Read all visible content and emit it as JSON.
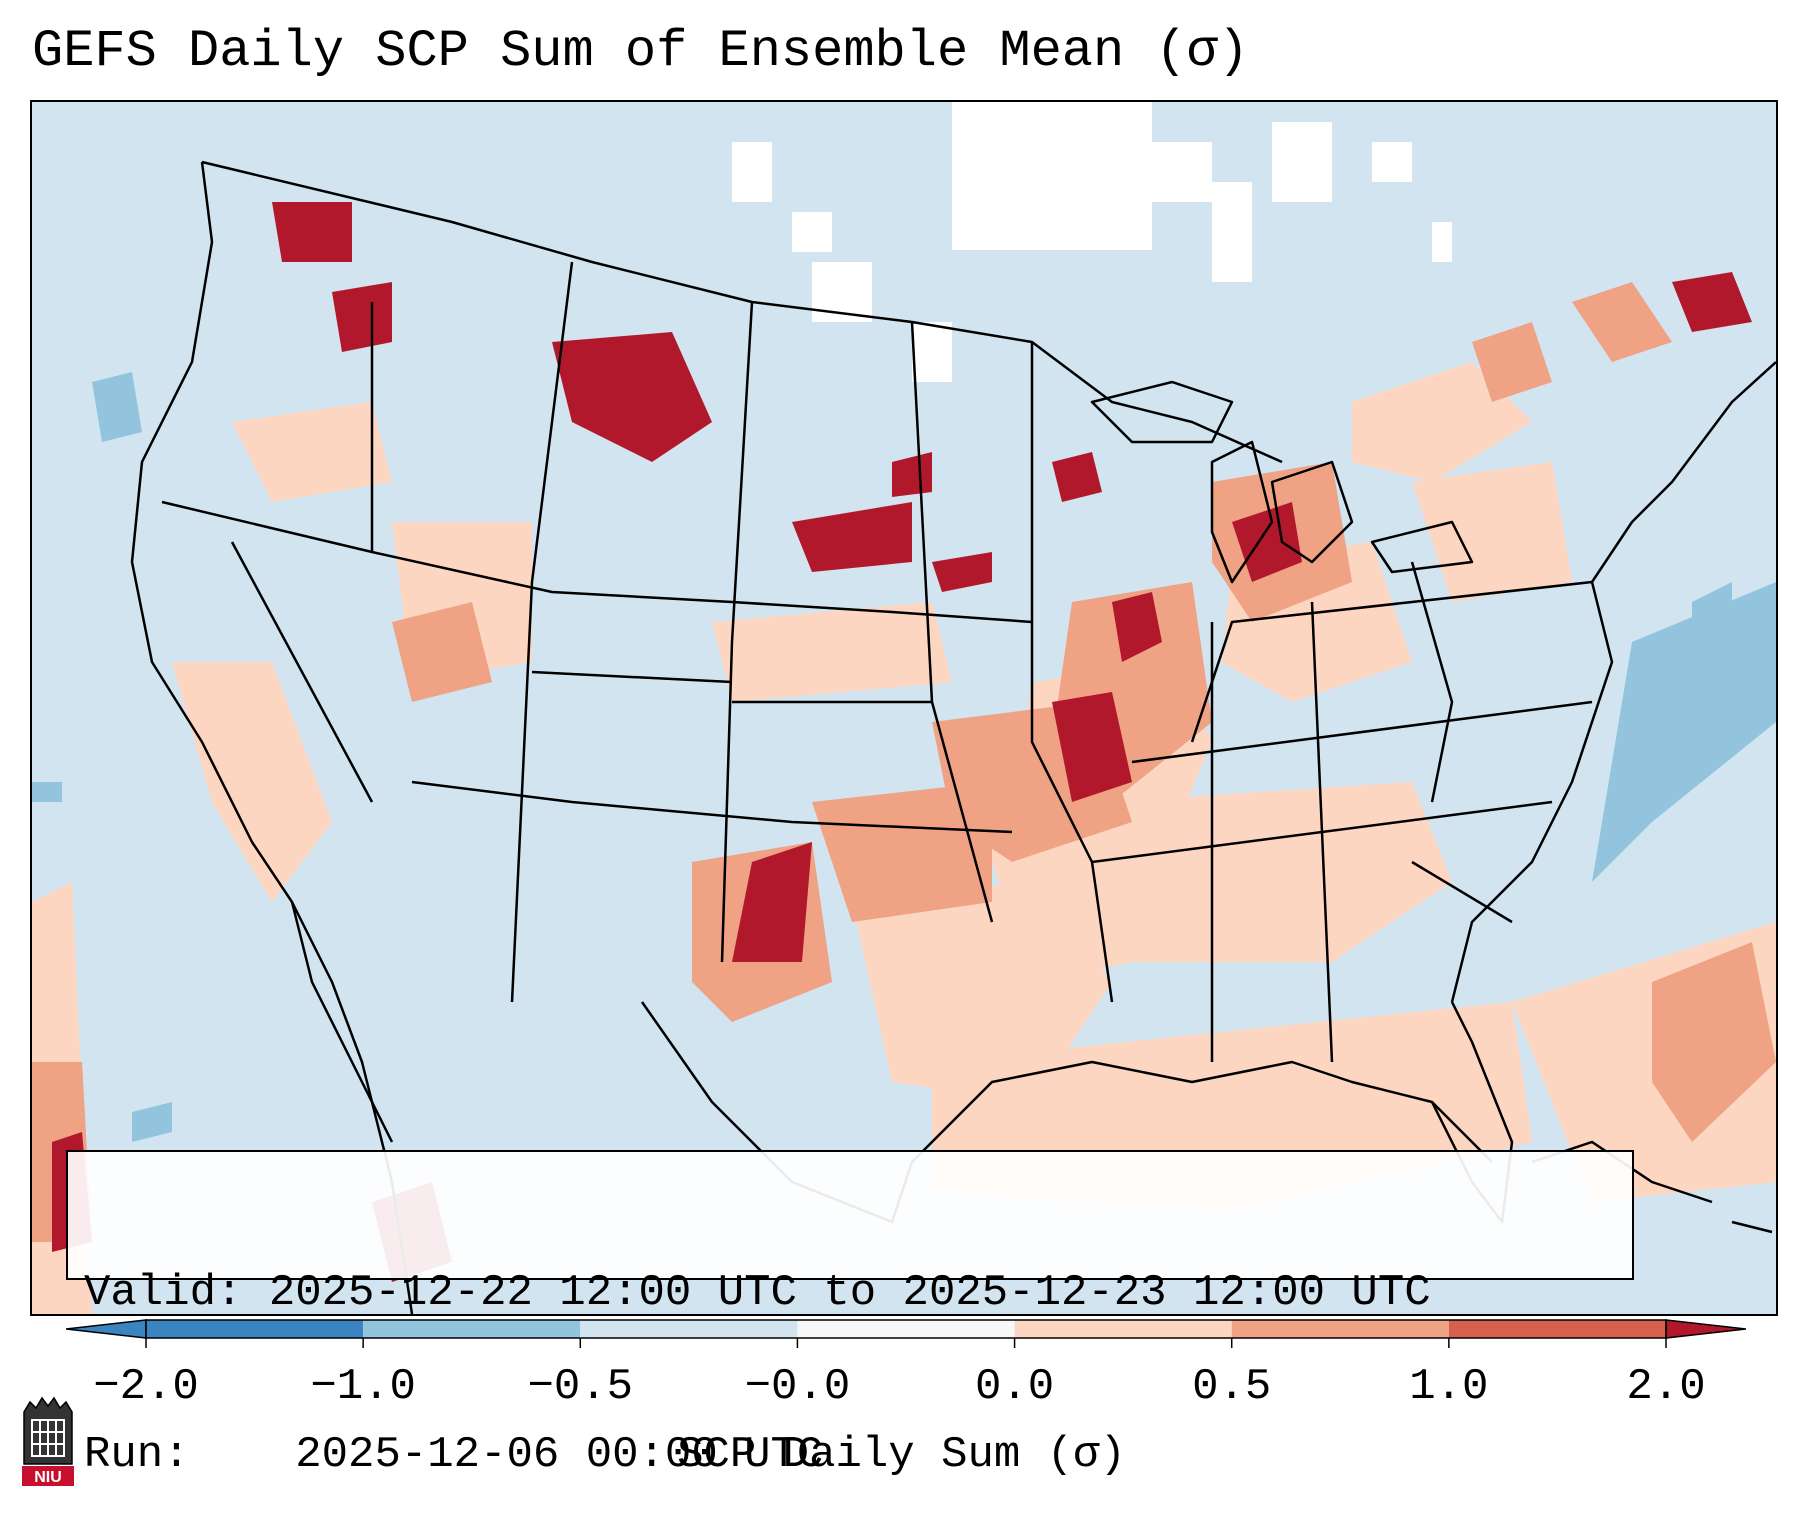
{
  "title": "GEFS Daily SCP Sum of Ensemble Mean (σ)",
  "info": {
    "valid_label": "Valid:",
    "valid_value": "2025-12-22 12:00 UTC to 2025-12-23 12:00 UTC",
    "run_label": "Run:",
    "run_value": "2025-12-06 00:00 UTC"
  },
  "colorbar": {
    "label": "SCP Daily Sum (σ)",
    "ticks": [
      "−2.0",
      "−1.0",
      "−0.5",
      "−0.0",
      "0.0",
      "0.5",
      "1.0",
      "2.0"
    ],
    "colors": [
      "#3a84c0",
      "#93c4de",
      "#d1e4f0",
      "#f7f7f7",
      "#fdd6c2",
      "#f0a285",
      "#d6604d",
      "#b2182b"
    ]
  },
  "map": {
    "region": "Continental United States",
    "background_color": "#d1e4f0",
    "feature_color": "#000000"
  },
  "logo": {
    "text": "NIU",
    "icon": "niu-logo-icon"
  }
}
